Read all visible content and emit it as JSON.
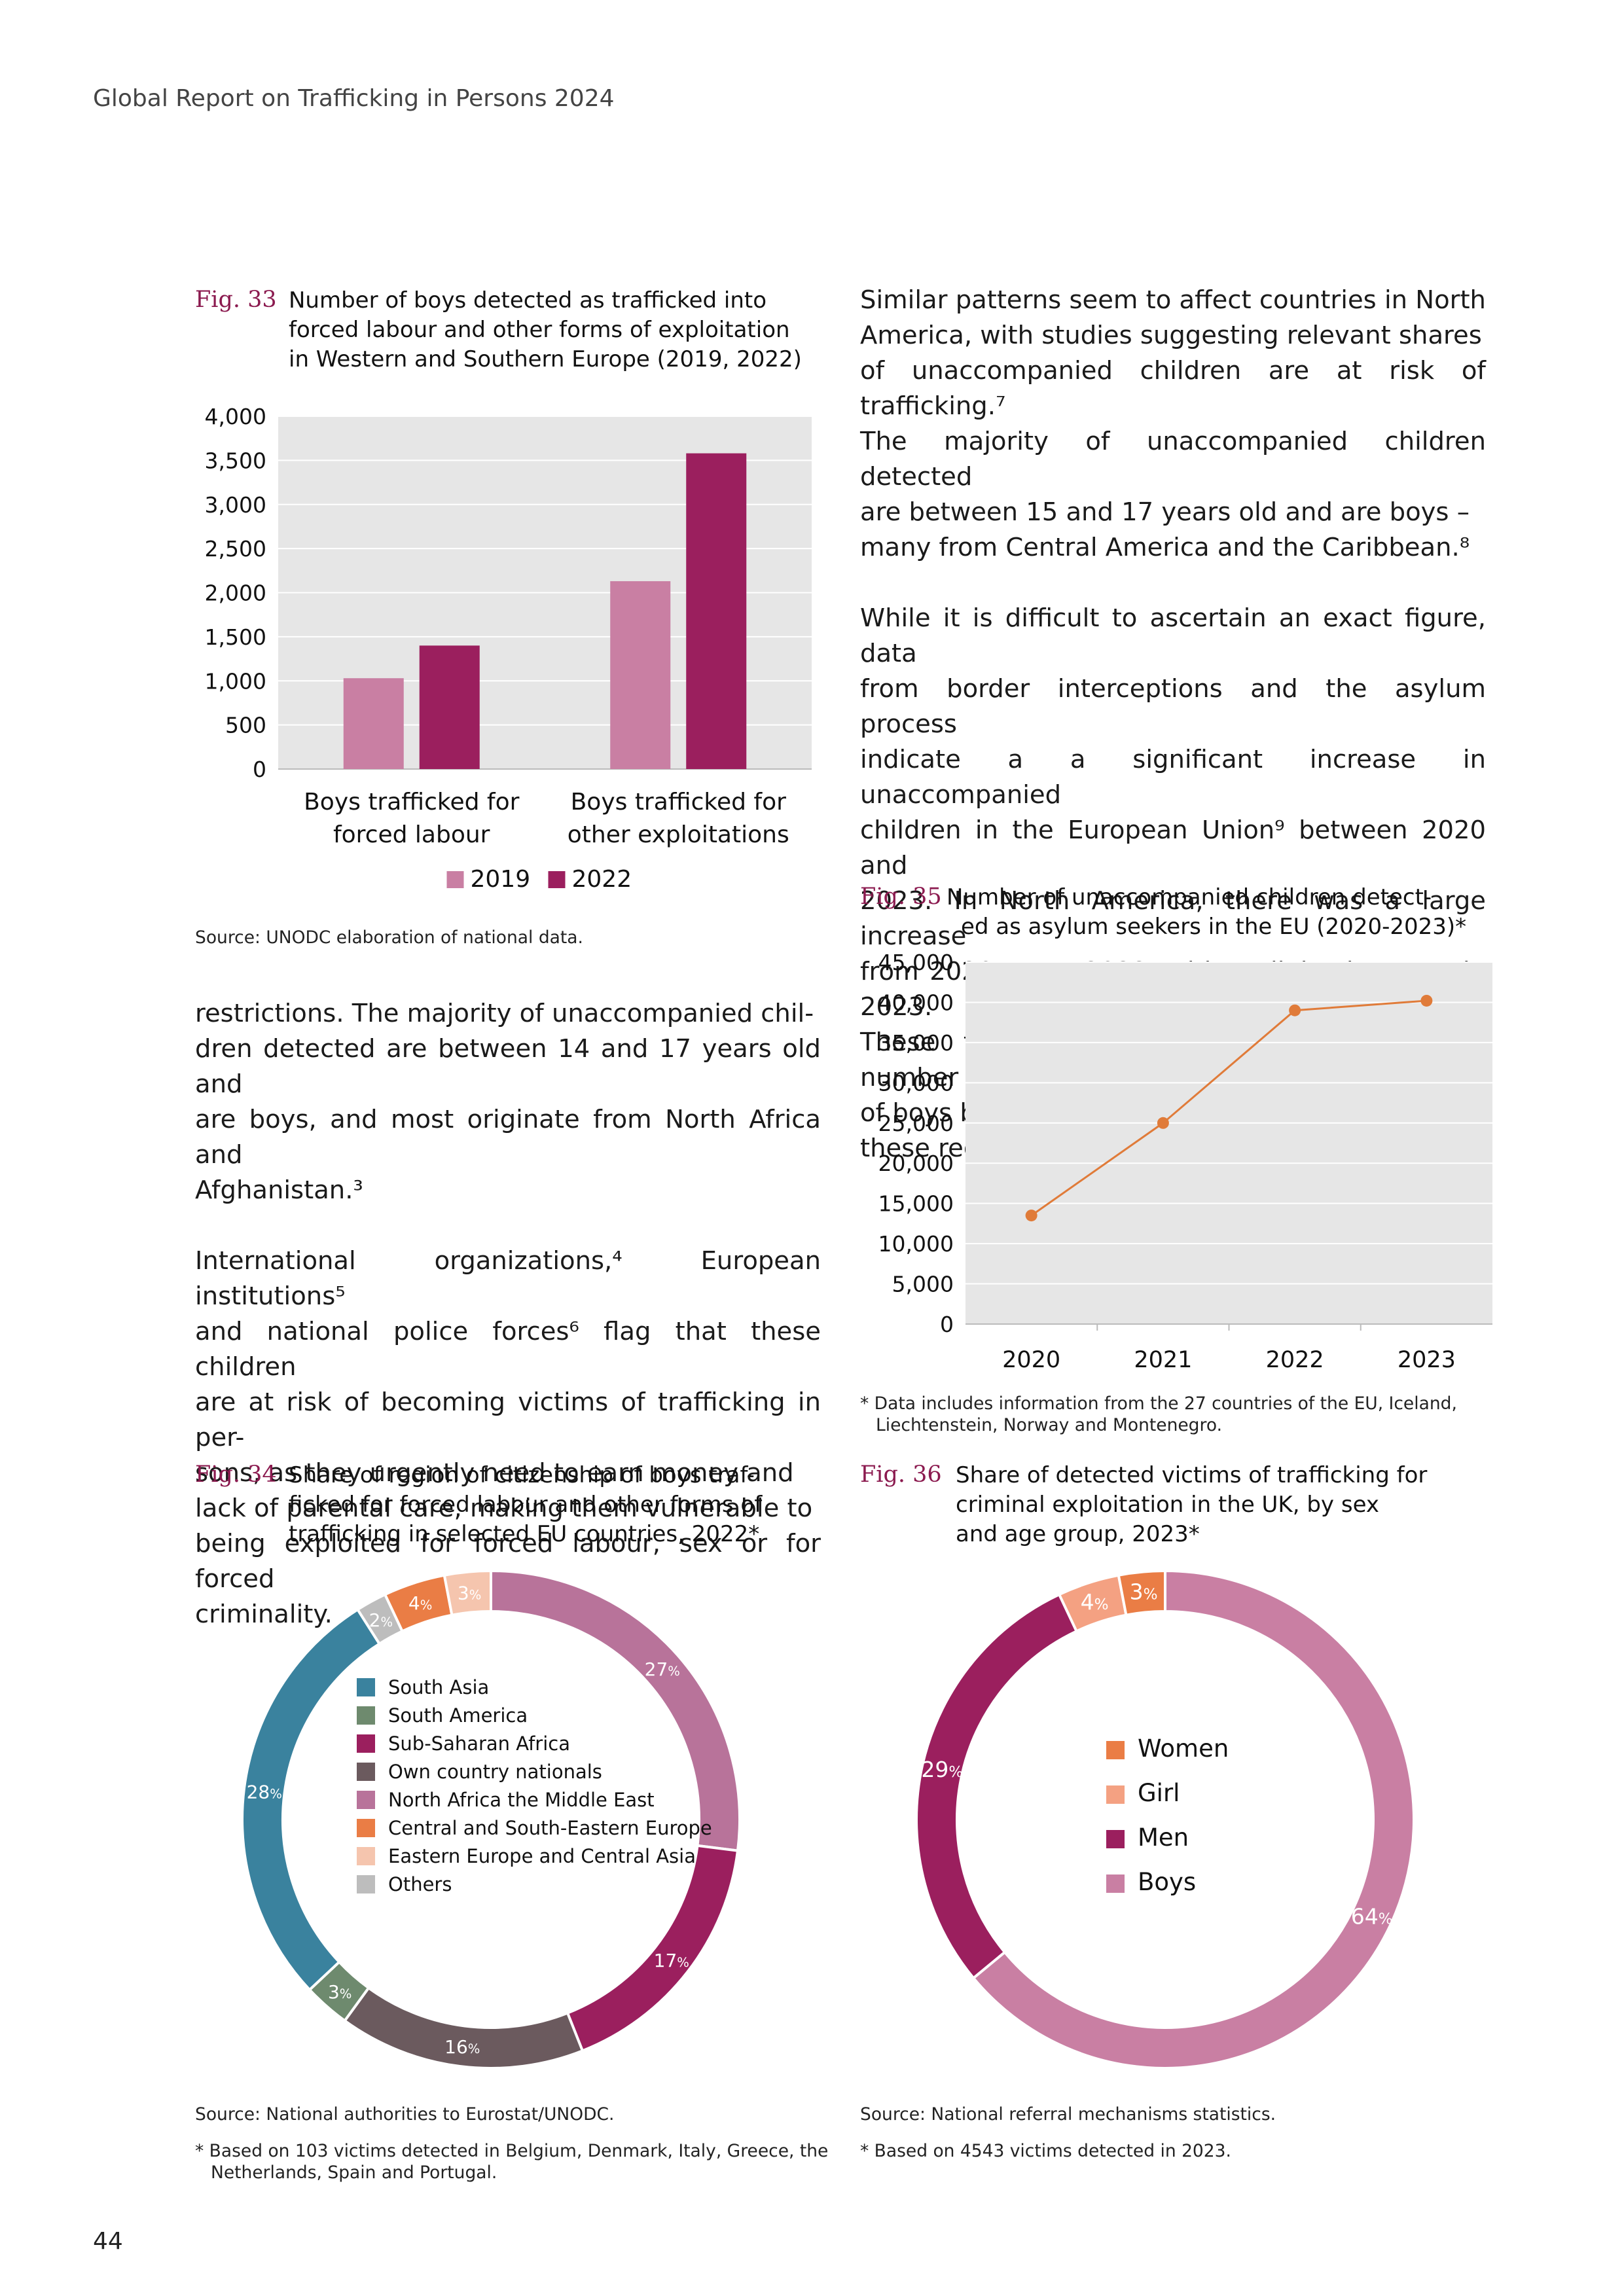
{
  "header": {
    "title": "Global Report on Trafficking in Persons 2024"
  },
  "page_number": "44",
  "fig33": {
    "label": "Fig. 33",
    "title_lines": [
      "Number of boys detected as trafficked into",
      "forced labour and other forms of exploitation",
      "in Western and Southern Europe (2019, 2022)"
    ],
    "source": "Source: UNODC elaboration of national data.",
    "colors": {
      "2019": "#c97fa3",
      "2022": "#9b1f5e",
      "plot_bg": "#e6e6e6"
    }
  },
  "fig34": {
    "label": "Fig. 34",
    "title_lines": [
      "Share of region of citizenship of boys traf-",
      "ficked for forced labour and other forms of",
      "trafficking in selected EU countries, 2022*"
    ],
    "source": "Source: National authorities to Eurostat/UNODC.",
    "note_lines": [
      "* Based on 103 victims detected in Belgium, Denmark, Italy, Greece, the",
      "Netherlands, Spain and Portugal."
    ]
  },
  "fig35": {
    "label": "Fig. 35",
    "title_lines": [
      "Number of unaccompanied children detect-",
      "ed as asylum seekers in the EU (2020-2023)*"
    ],
    "note_lines": [
      "* Data includes information from the 27 countries of the EU, Iceland,",
      "Liechtenstein, Norway and Montenegro."
    ],
    "colors": {
      "line": "#e07b39",
      "plot_bg": "#e6e6e6"
    }
  },
  "fig36": {
    "label": "Fig. 36",
    "title_lines": [
      "Share of detected victims of trafficking for",
      "criminal exploitation in the UK, by sex",
      "and age group, 2023*"
    ],
    "source": "Source: National referral mechanisms statistics.",
    "note_lines": [
      "* Based on 4543 victims detected in 2023."
    ]
  },
  "body": {
    "right_para1": [
      "Similar patterns seem to affect countries in North",
      "America, with studies suggesting relevant shares",
      "of unaccompanied children are at risk of trafficking.⁷",
      "The majority of unaccompanied children detected",
      "are between 15 and 17 years old and are boys –",
      "many from Central America and the Caribbean.⁸"
    ],
    "right_para2": [
      "While it is difficult to ascertain an exact figure, data",
      "from border interceptions and the asylum process",
      "indicate a a significant increase in unaccompanied",
      "children in the European Union⁹ between 2020 and",
      "2023. In North America, there was a large increase",
      "from 2020 up to 2022, with a slight decrease in 2023.",
      "These trends could explain the increasing number",
      "of boys becoming victims of trafficking in both of",
      "these regions."
    ],
    "left_para1": [
      "restrictions. The majority of unaccompanied chil-",
      "dren detected are between 14 and 17 years old and",
      "are boys, and most originate from North Africa and",
      "Afghanistan.³"
    ],
    "left_para2": [
      "International organizations,⁴ European institutions⁵",
      "and national police forces⁶ flag that these children",
      "are at risk of becoming victims of trafficking in per-",
      "sons, as they urgently need to earn money and",
      "lack of parental care, making them vulnerable to",
      "being exploited for forced labour, sex or for forced",
      "criminality."
    ]
  },
  "chart_data": [
    {
      "id": "fig33",
      "type": "bar",
      "categories": [
        "Boys trafficked for forced labour",
        "Boys trafficked for other exploitations"
      ],
      "category_lines": [
        [
          "Boys trafficked for",
          "forced labour"
        ],
        [
          "Boys trafficked for",
          "other exploitations"
        ]
      ],
      "series": [
        {
          "name": "2019",
          "values": [
            1030,
            2130
          ]
        },
        {
          "name": "2022",
          "values": [
            1400,
            3580
          ]
        }
      ],
      "ylim": [
        0,
        4000
      ],
      "yticks": [
        "0",
        "500",
        "1,000",
        "1,500",
        "2,000",
        "2,500",
        "3,000",
        "3,500",
        "4,000"
      ],
      "grid": true,
      "legend": "bottom"
    },
    {
      "id": "fig35",
      "type": "line",
      "x": [
        "2020",
        "2021",
        "2022",
        "2023"
      ],
      "series": [
        {
          "values": [
            13500,
            25000,
            39000,
            40200
          ]
        }
      ],
      "ylim": [
        0,
        45000
      ],
      "yticks": [
        "0",
        "5,000",
        "10,000",
        "15,000",
        "20,000",
        "25,000",
        "30,000",
        "35,000",
        "40,000",
        "45,000"
      ],
      "grid": true
    },
    {
      "id": "fig34",
      "type": "pie",
      "donut": true,
      "slices": [
        {
          "name": "North Africa the Middle East",
          "value": 27,
          "label": "27",
          "color": "#b8739a"
        },
        {
          "name": "Sub-Saharan Africa",
          "value": 17,
          "label": "17",
          "color": "#9b1f5e"
        },
        {
          "name": "Own country nationals",
          "value": 16,
          "label": "16",
          "color": "#6b5a5e"
        },
        {
          "name": "South America",
          "value": 3,
          "label": "3",
          "color": "#6e8a6e"
        },
        {
          "name": "South Asia",
          "value": 28,
          "label": "28",
          "color": "#3a829e"
        },
        {
          "name": "Others",
          "value": 2,
          "label": "2",
          "color": "#bdbdbd"
        },
        {
          "name": "Central and South-Eastern Europe",
          "value": 4,
          "label": "4",
          "color": "#ea7d45"
        },
        {
          "name": "Eastern Europe and Central Asia",
          "value": 3,
          "label": "3",
          "color": "#f5c5ae"
        }
      ],
      "legend_order": [
        "South Asia",
        "South America",
        "Sub-Saharan Africa",
        "Own country nationals",
        "North Africa the Middle East",
        "Central and South-Eastern Europe",
        "Eastern Europe and Central Asia",
        "Others"
      ],
      "legend": "center"
    },
    {
      "id": "fig36",
      "type": "pie",
      "donut": true,
      "slices": [
        {
          "name": "Boys",
          "value": 64,
          "label": "64",
          "color": "#c97fa3"
        },
        {
          "name": "Men",
          "value": 29,
          "label": "29",
          "color": "#9b1f5e"
        },
        {
          "name": "Girl",
          "value": 4,
          "label": "4",
          "color": "#f4a182"
        },
        {
          "name": "Women",
          "value": 3,
          "label": "3",
          "color": "#ea7d45"
        }
      ],
      "legend_order": [
        "Women",
        "Girl",
        "Men",
        "Boys"
      ],
      "legend": "center"
    }
  ]
}
